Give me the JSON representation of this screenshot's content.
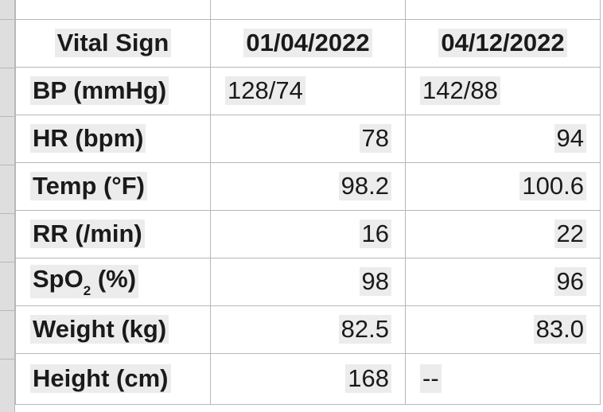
{
  "table": {
    "headers": [
      "Vital Sign",
      "01/04/2022",
      "04/12/2022"
    ],
    "rows": [
      {
        "label": "BP (mmHg)",
        "v1": "128/74",
        "v2": "142/88",
        "align": "text"
      },
      {
        "label": "HR (bpm)",
        "v1": "78",
        "v2": "94",
        "align": "num"
      },
      {
        "label": "Temp (°F)",
        "v1": "98.2",
        "v2": "100.6",
        "align": "num"
      },
      {
        "label": "RR (/min)",
        "v1": "16",
        "v2": "22",
        "align": "num"
      },
      {
        "label_pre": "SpO",
        "label_sub": "2",
        "label_post": " (%)",
        "v1": "98",
        "v2": "96",
        "align": "num"
      },
      {
        "label": "Weight (kg)",
        "v1": "82.5",
        "v2": "83.0",
        "align": "num"
      },
      {
        "label": "Height (cm)",
        "v1": "168",
        "v2": "--",
        "align": "num"
      }
    ]
  },
  "colors": {
    "grid_line": "#b7b7b7",
    "cell_highlight": "#ececec",
    "row_gutter": "#dedede"
  }
}
